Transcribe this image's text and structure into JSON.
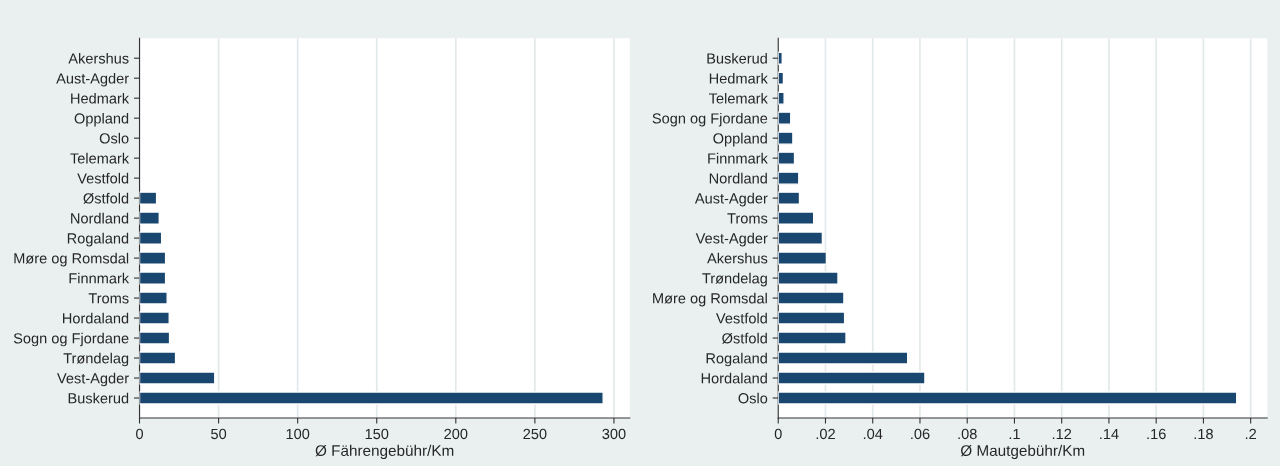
{
  "chart_data": [
    {
      "type": "bar",
      "orientation": "horizontal",
      "xlabel": "Ø Fährengebühr/Km",
      "color": "#1a476f",
      "grid": "x",
      "categories": [
        "Akershus",
        "Aust-Agder",
        "Hedmark",
        "Oppland",
        "Oslo",
        "Telemark",
        "Vestfold",
        "Østfold",
        "Nordland",
        "Rogaland",
        "Møre og Romsdal",
        "Finnmark",
        "Troms",
        "Hordaland",
        "Sogn og Fjordane",
        "Trøndelag",
        "Vest-Agder",
        "Buskerud"
      ],
      "values": [
        null,
        null,
        null,
        null,
        null,
        null,
        null,
        10.8,
        12.5,
        14,
        16.5,
        16.5,
        17.5,
        18.8,
        19,
        22.8,
        47.6,
        293.2
      ],
      "xlim": [
        0,
        310
      ],
      "xticks": [
        0,
        50,
        100,
        150,
        200,
        250,
        300
      ]
    },
    {
      "type": "bar",
      "orientation": "horizontal",
      "xlabel": "Ø Mautgebühr/Km",
      "color": "#1a476f",
      "grid": "x",
      "categories": [
        "Buskerud",
        "Hedmark",
        "Telemark",
        "Sogn og Fjordane",
        "Oppland",
        "Finnmark",
        "Nordland",
        "Aust-Agder",
        "Troms",
        "Vest-Agder",
        "Akershus",
        "Trøndelag",
        "Møre og Romsdal",
        "Vestfold",
        "Østfold",
        "Rogaland",
        "Hordaland",
        "Oslo"
      ],
      "values": [
        0.0017,
        0.0022,
        0.0025,
        0.0053,
        0.0062,
        0.0069,
        0.0087,
        0.009,
        0.015,
        0.0187,
        0.0204,
        0.0253,
        0.0278,
        0.0281,
        0.0287,
        0.0548,
        0.0621,
        0.1941
      ],
      "xlim": [
        0,
        0.207
      ],
      "xticks": [
        0,
        {
          "value": 0.02,
          "label": ".02"
        },
        {
          "value": 0.04,
          "label": ".04"
        },
        {
          "value": 0.06,
          "label": ".06"
        },
        {
          "value": 0.08,
          "label": ".08"
        },
        {
          "value": 0.1,
          "label": ".1"
        },
        {
          "value": 0.12,
          "label": ".12"
        },
        {
          "value": 0.14,
          "label": ".14"
        },
        {
          "value": 0.16,
          "label": ".16"
        },
        {
          "value": 0.18,
          "label": ".18"
        },
        {
          "value": 0.2,
          "label": ".2"
        }
      ]
    }
  ]
}
